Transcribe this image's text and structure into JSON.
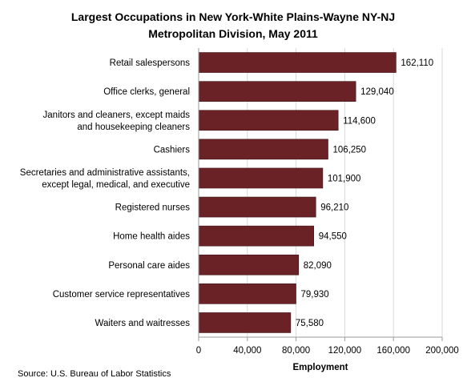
{
  "chart_data": {
    "type": "bar",
    "orientation": "horizontal",
    "title": [
      "Largest Occupations in New York-White Plains-Wayne NY-NJ",
      "Metropolitan Division, May 2011"
    ],
    "categories": [
      [
        "Retail salespersons"
      ],
      [
        "Office clerks, general"
      ],
      [
        "Janitors and cleaners, except maids",
        "and housekeeping cleaners"
      ],
      [
        "Cashiers"
      ],
      [
        "Secretaries and administrative  assistants,",
        "except legal, medical, and executive"
      ],
      [
        "Registered nurses"
      ],
      [
        "Home health aides"
      ],
      [
        "Personal care aides"
      ],
      [
        "Customer service representatives"
      ],
      [
        "Waiters and  waitresses"
      ]
    ],
    "values": [
      162110,
      129040,
      114600,
      106250,
      101900,
      96210,
      94550,
      82090,
      79930,
      75580
    ],
    "value_labels": [
      "162,110",
      "129,040",
      "114,600",
      "106,250",
      "101,900",
      "96,210",
      "94,550",
      "82,090",
      "79,930",
      "75,580"
    ],
    "xlim": [
      0,
      200000
    ],
    "xticks": [
      0,
      40000,
      80000,
      120000,
      160000,
      200000
    ],
    "xtick_labels": [
      "0",
      "40,000",
      "80,000",
      "120,000",
      "160,000",
      "200,000"
    ],
    "xlabel": "Employment",
    "ylabel": "",
    "grid": true,
    "legend": "none",
    "bar_color": "#6b2226",
    "source": "Source:  U.S. Bureau of Labor Statistics"
  }
}
